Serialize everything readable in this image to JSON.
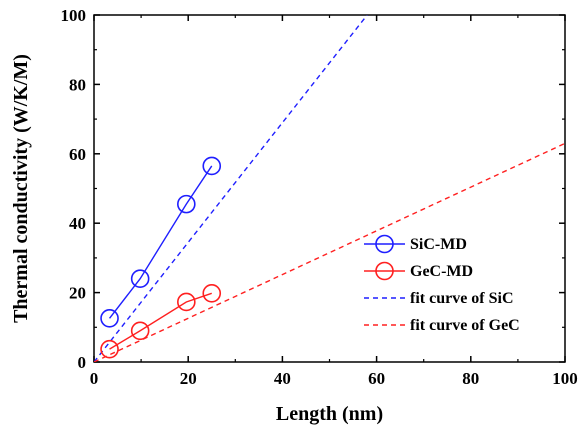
{
  "chart_data": {
    "type": "scatter",
    "xlabel": "Length (nm)",
    "ylabel": "Thermal conductivity (W/K/M)",
    "xlim": [
      0,
      100
    ],
    "ylim": [
      0,
      100
    ],
    "xticks": [
      0,
      20,
      40,
      60,
      80,
      100
    ],
    "yticks": [
      0,
      20,
      40,
      60,
      80,
      100
    ],
    "legend_position": "bottom-right",
    "grid": false,
    "series": [
      {
        "name": "SiC-MD",
        "kind": "markers-line",
        "color": "#1f1fff",
        "x": [
          3.3,
          9.8,
          19.6,
          25.0
        ],
        "y": [
          12.6,
          24.0,
          45.5,
          56.5
        ]
      },
      {
        "name": "GeC-MD",
        "kind": "markers-line",
        "color": "#ff2020",
        "x": [
          3.3,
          9.8,
          19.6,
          25.0
        ],
        "y": [
          3.7,
          9.0,
          17.3,
          19.8
        ]
      },
      {
        "name": "fit curve of SiC",
        "kind": "dashed-line",
        "color": "#1f1fff",
        "x": [
          0,
          58
        ],
        "y": [
          0,
          100
        ]
      },
      {
        "name": "fit curve of GeC",
        "kind": "dashed-line",
        "color": "#ff2020",
        "x": [
          0,
          100
        ],
        "y": [
          0,
          63
        ]
      }
    ]
  }
}
